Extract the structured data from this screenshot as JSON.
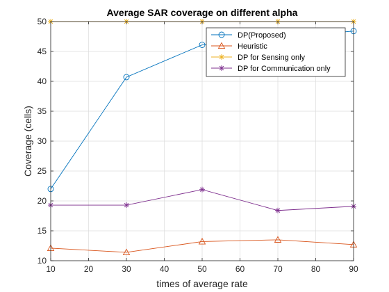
{
  "chart_data": {
    "type": "line",
    "title": "Average SAR coverage on different alpha",
    "xlabel": "times of average rate",
    "ylabel": "Coverage (cells)",
    "xlim": [
      10,
      90
    ],
    "ylim": [
      10,
      50
    ],
    "xticks": [
      10,
      20,
      30,
      40,
      50,
      60,
      70,
      80,
      90
    ],
    "yticks": [
      10,
      15,
      20,
      25,
      30,
      35,
      40,
      45,
      50
    ],
    "grid": true,
    "legend_position": "top-right",
    "x": [
      10,
      30,
      50,
      70,
      90
    ],
    "series": [
      {
        "name": "DP(Proposed)",
        "values": [
          22,
          40.7,
          46.1,
          47.3,
          48.4
        ],
        "color": "#0072BD",
        "marker": "circle"
      },
      {
        "name": "Heuristic",
        "values": [
          12.1,
          11.4,
          13.2,
          13.5,
          12.7
        ],
        "color": "#D95319",
        "marker": "triangle"
      },
      {
        "name": "DP for Sensing only",
        "values": [
          50,
          50,
          50,
          50,
          50
        ],
        "color": "#EDB120",
        "marker": "star"
      },
      {
        "name": "DP for Communication only",
        "values": [
          19.3,
          19.3,
          21.9,
          18.4,
          19.1
        ],
        "color": "#7E2F8E",
        "marker": "star"
      }
    ]
  }
}
